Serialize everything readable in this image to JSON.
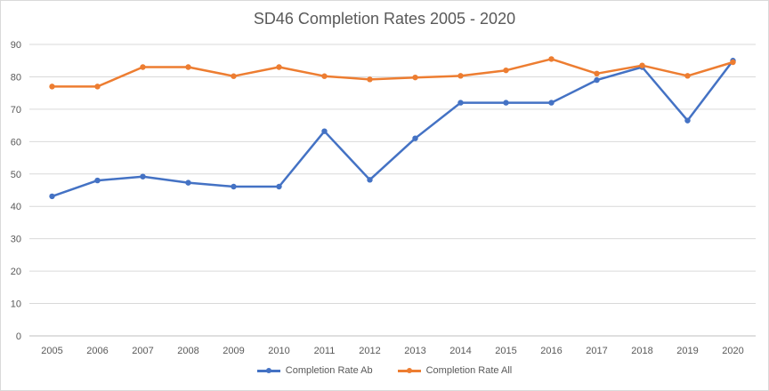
{
  "chart_data": {
    "type": "line",
    "title": "SD46 Completion Rates 2005 - 2020",
    "xlabel": "",
    "ylabel": "",
    "categories": [
      "2005",
      "2006",
      "2007",
      "2008",
      "2009",
      "2010",
      "2011",
      "2012",
      "2013",
      "2014",
      "2015",
      "2016",
      "2017",
      "2018",
      "2019",
      "2020"
    ],
    "ylim": [
      0,
      90
    ],
    "yticks": [
      0,
      10,
      20,
      30,
      40,
      50,
      60,
      70,
      80,
      90
    ],
    "grid": true,
    "legend_position": "bottom",
    "series": [
      {
        "name": "Completion Rate Ab",
        "color": "#4472c4",
        "values": [
          43.1,
          48,
          49.2,
          47.3,
          46.1,
          46.1,
          63.2,
          48.2,
          61,
          72,
          72,
          72,
          79,
          83,
          66.5,
          85
        ]
      },
      {
        "name": "Completion Rate All",
        "color": "#ed7d31",
        "values": [
          77,
          77,
          83,
          83,
          80.2,
          83,
          80.2,
          79.2,
          79.8,
          80.3,
          82,
          85.5,
          81,
          83.5,
          80.3,
          84.5
        ]
      }
    ]
  }
}
